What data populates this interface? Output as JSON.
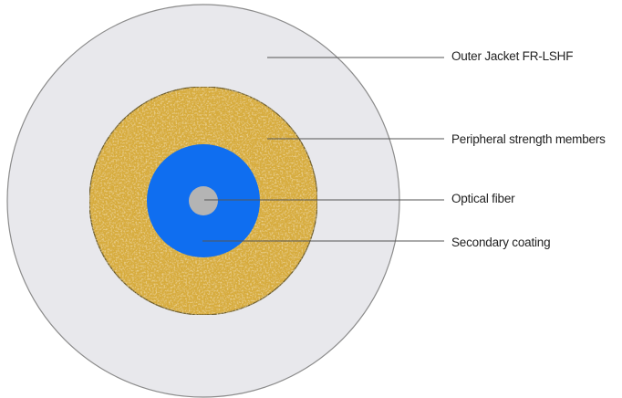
{
  "layers": [
    {
      "key": "jacket",
      "label": "Outer Jacket FR-LSHF",
      "color": "#e8e8ec"
    },
    {
      "key": "strength",
      "label": "Peripheral strength members",
      "color": "#d7ac3e"
    },
    {
      "key": "coating",
      "label": "Secondary coating",
      "color": "#0f6ef0"
    },
    {
      "key": "fiber",
      "label": "Optical fiber",
      "color": "#b4b4b4"
    }
  ],
  "colors": {
    "outline": "#8c8c8c",
    "leader": "#555555"
  }
}
